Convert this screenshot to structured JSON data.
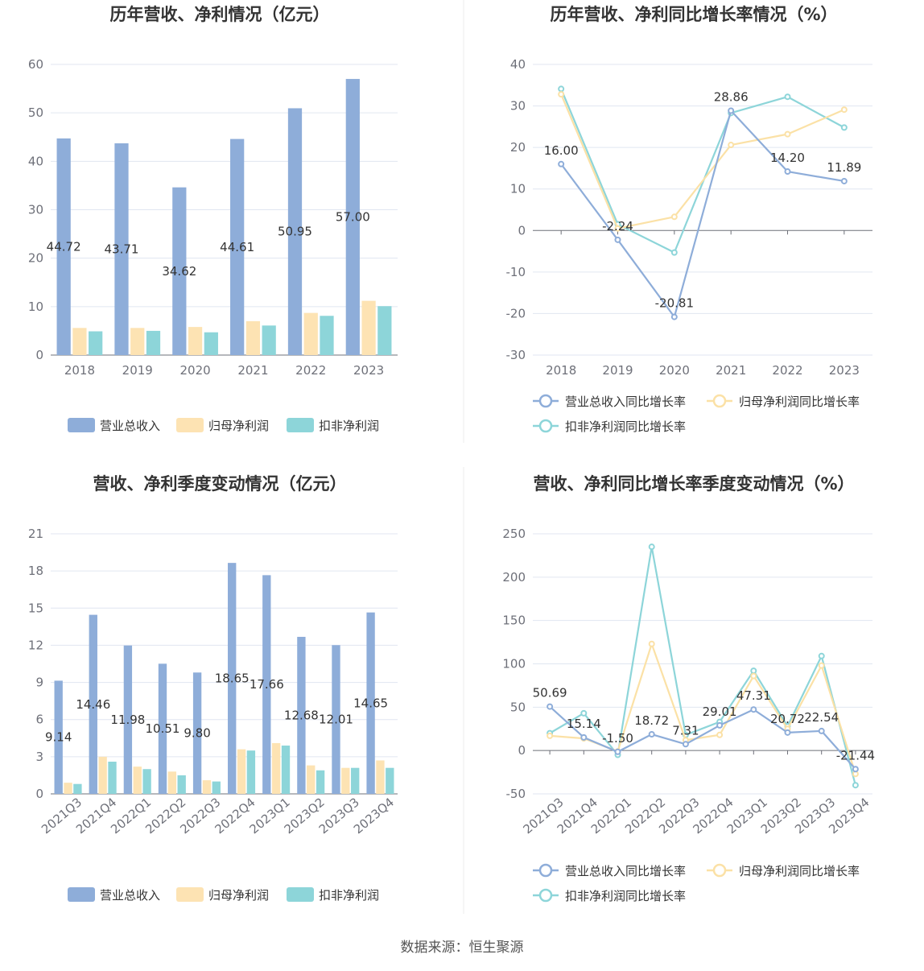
{
  "source_text": "数据来源：恒生聚源",
  "colors": {
    "revenue": "#8eadd9",
    "net_profit": "#fde3b3",
    "deducted": "#8dd5d9",
    "revenue_line": "#8eadd9",
    "net_line": "#fbe1a6",
    "deducted_line": "#8dd5d9"
  },
  "chart_data": [
    {
      "type": "bar",
      "title": "历年营收、净利情况（亿元）",
      "categories": [
        "2018",
        "2019",
        "2020",
        "2021",
        "2022",
        "2023"
      ],
      "ylim": [
        0,
        60
      ],
      "yticks": [
        0,
        10,
        20,
        30,
        40,
        50,
        60
      ],
      "series": [
        {
          "name": "营业总收入",
          "values": [
            44.72,
            43.71,
            34.62,
            44.61,
            50.95,
            57.0
          ],
          "labels": [
            "44.72",
            "43.71",
            "34.62",
            "44.61",
            "50.95",
            "57.00"
          ]
        },
        {
          "name": "归母净利润",
          "values": [
            5.6,
            5.6,
            5.8,
            7.0,
            8.7,
            11.2
          ]
        },
        {
          "name": "扣非净利润",
          "values": [
            4.9,
            5.0,
            4.7,
            6.1,
            8.1,
            10.1
          ]
        }
      ],
      "legend": "bottom"
    },
    {
      "type": "line",
      "title": "历年营收、净利同比增长率情况（%）",
      "categories": [
        "2018",
        "2019",
        "2020",
        "2021",
        "2022",
        "2023"
      ],
      "ylim": [
        -30,
        40
      ],
      "yticks": [
        -30,
        -20,
        -10,
        0,
        10,
        20,
        30,
        40
      ],
      "series": [
        {
          "name": "营业总收入同比增长率",
          "values": [
            16.0,
            -2.24,
            -20.81,
            28.86,
            14.2,
            11.89
          ],
          "labels": [
            "16.00",
            "-2.24",
            "-20.81",
            "28.86",
            "14.20",
            "11.89"
          ]
        },
        {
          "name": "归母净利润同比增长率",
          "values": [
            32.8,
            0.5,
            3.3,
            20.6,
            23.2,
            29.1
          ]
        },
        {
          "name": "扣非净利润同比增长率",
          "values": [
            34.1,
            1.5,
            -5.3,
            28.3,
            32.2,
            24.8
          ]
        }
      ],
      "legend": "bottom"
    },
    {
      "type": "bar",
      "title": "营收、净利季度变动情况（亿元）",
      "categories": [
        "2021Q3",
        "2021Q4",
        "2022Q1",
        "2022Q2",
        "2022Q3",
        "2022Q4",
        "2023Q1",
        "2023Q2",
        "2023Q3",
        "2023Q4"
      ],
      "ylim": [
        0,
        21
      ],
      "yticks": [
        0,
        3,
        6,
        9,
        12,
        15,
        18,
        21
      ],
      "series": [
        {
          "name": "营业总收入",
          "values": [
            9.14,
            14.46,
            11.98,
            10.51,
            9.8,
            18.65,
            17.66,
            12.68,
            12.01,
            14.65
          ],
          "labels": [
            "9.14",
            "14.46",
            "11.98",
            "10.51",
            "9.80",
            "18.65",
            "17.66",
            "12.68",
            "12.01",
            "14.65"
          ]
        },
        {
          "name": "归母净利润",
          "values": [
            0.9,
            3.0,
            2.2,
            1.8,
            1.1,
            3.6,
            4.1,
            2.3,
            2.1,
            2.7
          ]
        },
        {
          "name": "扣非净利润",
          "values": [
            0.8,
            2.6,
            2.0,
            1.5,
            1.0,
            3.5,
            3.9,
            1.9,
            2.1,
            2.1
          ]
        }
      ],
      "legend": "bottom"
    },
    {
      "type": "line",
      "title": "营收、净利同比增长率季度变动情况（%）",
      "categories": [
        "2021Q3",
        "2021Q4",
        "2022Q1",
        "2022Q2",
        "2022Q3",
        "2022Q4",
        "2023Q1",
        "2023Q2",
        "2023Q3",
        "2023Q4"
      ],
      "ylim": [
        -50,
        250
      ],
      "yticks": [
        -50,
        0,
        50,
        100,
        150,
        200,
        250
      ],
      "series": [
        {
          "name": "营业总收入同比增长率",
          "values": [
            50.69,
            15.14,
            -1.5,
            18.72,
            7.31,
            29.01,
            47.31,
            20.72,
            22.54,
            -21.44
          ],
          "labels": [
            "50.69",
            "15.14",
            "-1.50",
            "18.72",
            "7.31",
            "29.01",
            "47.31",
            "20.72",
            "22.54",
            "-21.44"
          ]
        },
        {
          "name": "归母净利润同比增长率",
          "values": [
            17,
            14,
            -1,
            123,
            12,
            18,
            86,
            25,
            98,
            -27
          ]
        },
        {
          "name": "扣非净利润同比增长率",
          "values": [
            20,
            43,
            -5,
            235,
            18,
            33,
            92,
            28,
            109,
            -40
          ]
        }
      ],
      "legend": "bottom"
    }
  ]
}
